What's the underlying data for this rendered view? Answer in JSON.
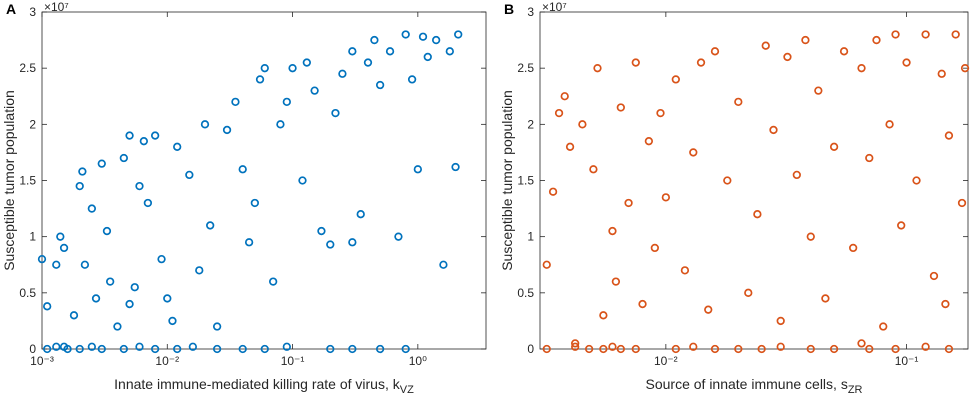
{
  "chart_data": [
    {
      "type": "scatter",
      "panel_label": "A",
      "ylabel": "Susceptible tumor population",
      "y_scale_label": "×10⁷",
      "xlabel": "Innate immune-mediated killing rate of virus, k",
      "xlabel_subscript": "VZ",
      "xscale": "log",
      "xlim": [
        0.001,
        3.5
      ],
      "ylim": [
        0,
        3
      ],
      "xticks": [
        {
          "value": 0.001,
          "label": "10⁻³"
        },
        {
          "value": 0.01,
          "label": "10⁻²"
        },
        {
          "value": 0.1,
          "label": "10⁻¹"
        },
        {
          "value": 1,
          "label": "10⁰"
        }
      ],
      "yticks": [
        0,
        0.5,
        1,
        1.5,
        2,
        2.5,
        3
      ],
      "series": [
        {
          "color": "#0072bd",
          "x": [
            0.0011,
            0.0013,
            0.0016,
            0.002,
            0.0025,
            0.003,
            0.0045,
            0.006,
            0.008,
            0.012,
            0.016,
            0.025,
            0.04,
            0.06,
            0.09,
            0.2,
            0.3,
            0.5,
            0.8,
            0.001,
            0.0011,
            0.0013,
            0.0014,
            0.0015,
            0.0018,
            0.002,
            0.0021,
            0.0022,
            0.0025,
            0.0027,
            0.003,
            0.0033,
            0.0035,
            0.004,
            0.0045,
            0.005,
            0.0055,
            0.006,
            0.0065,
            0.007,
            0.008,
            0.009,
            0.01,
            0.011,
            0.012,
            0.015,
            0.018,
            0.02,
            0.022,
            0.025,
            0.03,
            0.035,
            0.04,
            0.045,
            0.05,
            0.055,
            0.06,
            0.07,
            0.08,
            0.09,
            0.1,
            0.12,
            0.13,
            0.15,
            0.17,
            0.2,
            0.22,
            0.25,
            0.3,
            0.35,
            0.4,
            0.45,
            0.5,
            0.6,
            0.7,
            0.8,
            0.9,
            1.0,
            1.1,
            1.2,
            1.4,
            1.6,
            1.8,
            2.0,
            2.1,
            0.3,
            0.005,
            0.0015
          ],
          "y": [
            0,
            0.02,
            0,
            0,
            0.02,
            0,
            0,
            0.02,
            0,
            0,
            0.02,
            0,
            0,
            0,
            0.02,
            0,
            0,
            0,
            0,
            0.8,
            0.38,
            0.75,
            1.0,
            0.9,
            0.3,
            1.45,
            1.58,
            0.75,
            1.25,
            0.45,
            1.65,
            1.05,
            0.6,
            0.2,
            1.7,
            1.9,
            0.55,
            1.45,
            1.85,
            1.3,
            1.9,
            0.8,
            0.45,
            0.25,
            1.8,
            1.55,
            0.7,
            2.0,
            1.1,
            0.2,
            1.95,
            2.2,
            1.6,
            0.95,
            1.3,
            2.4,
            2.5,
            0.6,
            2.0,
            2.2,
            2.5,
            1.5,
            2.55,
            2.3,
            1.05,
            0.93,
            2.1,
            2.45,
            2.65,
            1.2,
            2.55,
            2.75,
            2.35,
            2.65,
            1.0,
            2.8,
            2.4,
            1.6,
            2.78,
            2.6,
            2.75,
            0.75,
            2.65,
            1.62,
            2.8,
            0.95,
            0.4,
            0.02
          ]
        }
      ]
    },
    {
      "type": "scatter",
      "panel_label": "B",
      "ylabel": "Susceptible tumor population",
      "y_scale_label": "×10⁷",
      "xlabel": "Source of innate immune cells, s",
      "xlabel_subscript": "ZR",
      "xscale": "log",
      "xlim": [
        0.003,
        0.18
      ],
      "ylim": [
        0,
        3
      ],
      "xticks": [
        {
          "value": 0.01,
          "label": "10⁻²"
        },
        {
          "value": 0.1,
          "label": "10⁻¹"
        }
      ],
      "yticks": [
        0,
        0.5,
        1,
        1.5,
        2,
        2.5,
        3
      ],
      "series": [
        {
          "color": "#d95319",
          "x": [
            0.0032,
            0.0042,
            0.0048,
            0.0055,
            0.006,
            0.0065,
            0.0075,
            0.011,
            0.013,
            0.016,
            0.02,
            0.025,
            0.03,
            0.04,
            0.05,
            0.07,
            0.09,
            0.12,
            0.15,
            0.0032,
            0.0034,
            0.0036,
            0.0038,
            0.004,
            0.0042,
            0.0045,
            0.005,
            0.0052,
            0.0055,
            0.006,
            0.0062,
            0.0065,
            0.007,
            0.0075,
            0.008,
            0.0085,
            0.009,
            0.0095,
            0.01,
            0.011,
            0.012,
            0.013,
            0.014,
            0.015,
            0.016,
            0.018,
            0.02,
            0.022,
            0.024,
            0.026,
            0.028,
            0.03,
            0.032,
            0.035,
            0.038,
            0.04,
            0.043,
            0.046,
            0.05,
            0.055,
            0.06,
            0.065,
            0.07,
            0.075,
            0.08,
            0.085,
            0.09,
            0.095,
            0.1,
            0.11,
            0.12,
            0.13,
            0.14,
            0.15,
            0.16,
            0.17,
            0.175,
            0.145,
            0.065
          ],
          "y": [
            0,
            0.02,
            0,
            0,
            0.02,
            0,
            0,
            0,
            0.02,
            0,
            0,
            0,
            0.02,
            0,
            0,
            0,
            0,
            0.02,
            0,
            0.75,
            1.4,
            2.1,
            2.25,
            1.8,
            0.05,
            2.0,
            1.6,
            2.5,
            0.3,
            1.05,
            0.6,
            2.15,
            1.3,
            2.55,
            0.4,
            1.85,
            0.9,
            2.1,
            1.35,
            2.4,
            0.7,
            1.75,
            2.55,
            0.35,
            2.65,
            1.5,
            2.2,
            0.5,
            1.2,
            2.7,
            1.95,
            0.25,
            2.6,
            1.55,
            2.75,
            1.0,
            2.3,
            0.45,
            1.8,
            2.65,
            0.9,
            2.5,
            1.7,
            2.75,
            0.2,
            2.0,
            2.8,
            1.1,
            2.55,
            1.5,
            2.8,
            0.65,
            2.45,
            1.9,
            2.8,
            1.3,
            2.5,
            0.4,
            0.05
          ]
        }
      ]
    }
  ]
}
